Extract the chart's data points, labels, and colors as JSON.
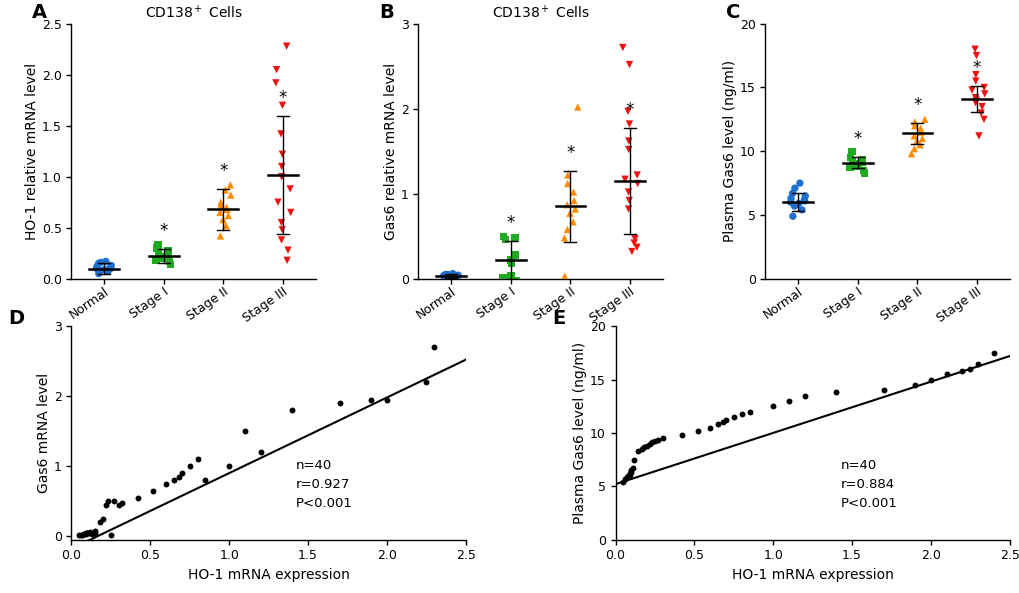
{
  "panel_A": {
    "title": "CD138$^+$ Cells",
    "ylabel": "HO-1 relative mRNA level",
    "ylim": [
      0,
      2.5
    ],
    "yticks": [
      0.0,
      0.5,
      1.0,
      1.5,
      2.0,
      2.5
    ],
    "categories": [
      "Normal",
      "Stage I",
      "Stage II",
      "Stage III"
    ],
    "colors": [
      "#1F6FD0",
      "#22AA22",
      "#FF8C00",
      "#EE1111"
    ],
    "markers": [
      "o",
      "s",
      "^",
      "v"
    ],
    "means": [
      0.1,
      0.22,
      0.68,
      1.02
    ],
    "sds": [
      0.05,
      0.07,
      0.2,
      0.58
    ],
    "data": {
      "Normal": [
        0.05,
        0.07,
        0.08,
        0.09,
        0.1,
        0.1,
        0.11,
        0.12,
        0.13,
        0.15,
        0.16,
        0.17
      ],
      "Stage I": [
        0.14,
        0.17,
        0.18,
        0.2,
        0.21,
        0.22,
        0.23,
        0.25,
        0.27,
        0.3,
        0.31,
        0.33
      ],
      "Stage II": [
        0.42,
        0.52,
        0.58,
        0.62,
        0.65,
        0.68,
        0.7,
        0.72,
        0.75,
        0.82,
        0.87,
        0.92
      ],
      "Stage III": [
        0.18,
        0.28,
        0.38,
        0.48,
        0.55,
        0.65,
        0.75,
        0.88,
        1.0,
        1.1,
        1.22,
        1.42,
        1.7,
        1.92,
        2.05,
        2.28
      ]
    },
    "sig": [
      false,
      true,
      true,
      true
    ]
  },
  "panel_B": {
    "title": "CD138$^+$ Cells",
    "ylabel": "Gas6 relative mRNA level",
    "ylim": [
      0,
      3.0
    ],
    "yticks": [
      0,
      1,
      2,
      3
    ],
    "categories": [
      "Normal",
      "Stage I",
      "Stage II",
      "Stage III"
    ],
    "colors": [
      "#1F6FD0",
      "#22AA22",
      "#FF8C00",
      "#EE1111"
    ],
    "markers": [
      "o",
      "s",
      "^",
      "v"
    ],
    "means": [
      0.03,
      0.22,
      0.85,
      1.15
    ],
    "sds": [
      0.02,
      0.22,
      0.42,
      0.62
    ],
    "data": {
      "Normal": [
        0.01,
        0.02,
        0.02,
        0.03,
        0.03,
        0.03,
        0.04,
        0.04,
        0.04,
        0.05,
        0.05,
        0.06
      ],
      "Stage I": [
        -0.05,
        -0.02,
        0.01,
        0.03,
        0.18,
        0.22,
        0.28,
        0.46,
        0.48,
        0.5
      ],
      "Stage II": [
        0.03,
        0.48,
        0.58,
        0.67,
        0.77,
        0.82,
        0.87,
        0.92,
        1.02,
        1.12,
        1.22,
        2.02
      ],
      "Stage III": [
        0.32,
        0.37,
        0.42,
        0.47,
        0.82,
        0.92,
        1.02,
        1.12,
        1.17,
        1.22,
        1.52,
        1.62,
        1.82,
        1.97,
        2.52,
        2.72
      ]
    },
    "sig": [
      false,
      true,
      true,
      true
    ]
  },
  "panel_C": {
    "title": "",
    "ylabel": "Plasma Gas6 level (ng/ml)",
    "ylim": [
      0,
      20
    ],
    "yticks": [
      0,
      5,
      10,
      15,
      20
    ],
    "categories": [
      "Normal",
      "Stage I",
      "Stage II",
      "Stage III"
    ],
    "colors": [
      "#1F6FD0",
      "#22AA22",
      "#FF8C00",
      "#EE1111"
    ],
    "markers": [
      "o",
      "s",
      "^",
      "v"
    ],
    "means": [
      6.05,
      9.1,
      11.4,
      14.1
    ],
    "sds": [
      0.7,
      0.42,
      0.85,
      1.05
    ],
    "data": {
      "Normal": [
        4.9,
        5.4,
        5.7,
        5.9,
        6.0,
        6.1,
        6.2,
        6.3,
        6.5,
        6.7,
        7.1,
        7.5
      ],
      "Stage I": [
        8.3,
        8.5,
        8.7,
        8.8,
        9.0,
        9.0,
        9.1,
        9.2,
        9.3,
        9.5,
        10.0
      ],
      "Stage II": [
        9.8,
        10.2,
        10.5,
        10.8,
        11.0,
        11.2,
        11.5,
        11.8,
        12.0,
        12.3,
        12.5
      ],
      "Stage III": [
        11.2,
        12.5,
        13.0,
        13.5,
        13.8,
        14.0,
        14.2,
        14.5,
        14.8,
        15.0,
        15.5,
        16.0,
        17.5,
        18.0
      ]
    },
    "sig": [
      false,
      true,
      true,
      true
    ]
  },
  "panel_D": {
    "xlabel": "HO-1 mRNA expression",
    "ylabel": "Gas6 mRNA level",
    "xlim": [
      0,
      2.5
    ],
    "ylim": [
      -0.05,
      3.0
    ],
    "yticks": [
      0,
      1,
      2,
      3
    ],
    "xticks": [
      0.0,
      0.5,
      1.0,
      1.5,
      2.0,
      2.5
    ],
    "annotation": "n=40\nr=0.927\nP<0.001",
    "intercept": -0.18,
    "slope": 1.08,
    "x_data": [
      0.05,
      0.06,
      0.07,
      0.08,
      0.08,
      0.09,
      0.09,
      0.1,
      0.1,
      0.11,
      0.12,
      0.13,
      0.15,
      0.15,
      0.18,
      0.2,
      0.22,
      0.23,
      0.25,
      0.27,
      0.3,
      0.32,
      0.42,
      0.52,
      0.6,
      0.65,
      0.68,
      0.7,
      0.75,
      0.8,
      0.85,
      1.0,
      1.1,
      1.2,
      1.4,
      1.7,
      1.9,
      2.0,
      2.25,
      2.3
    ],
    "y_data": [
      0.01,
      0.02,
      0.02,
      0.03,
      0.03,
      0.03,
      0.04,
      0.04,
      0.05,
      0.05,
      0.06,
      0.03,
      0.04,
      0.08,
      0.2,
      0.25,
      0.45,
      0.5,
      0.02,
      0.5,
      0.45,
      0.48,
      0.55,
      0.65,
      0.75,
      0.8,
      0.85,
      0.9,
      1.0,
      1.1,
      0.8,
      1.0,
      1.5,
      1.2,
      1.8,
      1.9,
      1.95,
      1.95,
      2.2,
      2.7
    ]
  },
  "panel_E": {
    "xlabel": "HO-1 mRNA expression",
    "ylabel": "Plasma Gas6 level (ng/ml)",
    "xlim": [
      0,
      2.5
    ],
    "ylim": [
      0,
      20
    ],
    "yticks": [
      0,
      5,
      10,
      15,
      20
    ],
    "xticks": [
      0.0,
      0.5,
      1.0,
      1.5,
      2.0,
      2.5
    ],
    "annotation": "n=40\nr=0.884\nP<0.001",
    "intercept": 5.2,
    "slope": 4.8,
    "x_data": [
      0.05,
      0.06,
      0.07,
      0.08,
      0.09,
      0.09,
      0.1,
      0.1,
      0.11,
      0.12,
      0.14,
      0.17,
      0.18,
      0.2,
      0.22,
      0.23,
      0.25,
      0.27,
      0.3,
      0.42,
      0.52,
      0.6,
      0.65,
      0.68,
      0.7,
      0.75,
      0.8,
      0.85,
      1.0,
      1.1,
      1.2,
      1.4,
      1.7,
      1.9,
      2.0,
      2.1,
      2.2,
      2.25,
      2.3,
      2.4
    ],
    "y_data": [
      5.4,
      5.7,
      5.9,
      6.0,
      6.1,
      6.2,
      6.3,
      6.5,
      6.7,
      7.5,
      8.3,
      8.5,
      8.7,
      8.8,
      9.0,
      9.1,
      9.2,
      9.3,
      9.5,
      9.8,
      10.2,
      10.5,
      10.8,
      11.0,
      11.2,
      11.5,
      11.8,
      12.0,
      12.5,
      13.0,
      13.5,
      13.8,
      14.0,
      14.5,
      15.0,
      15.5,
      15.8,
      16.0,
      16.5,
      17.5
    ]
  },
  "background_color": "#FFFFFF",
  "label_fontsize": 10,
  "tick_fontsize": 9,
  "title_fontsize": 10,
  "panel_label_fontsize": 14
}
